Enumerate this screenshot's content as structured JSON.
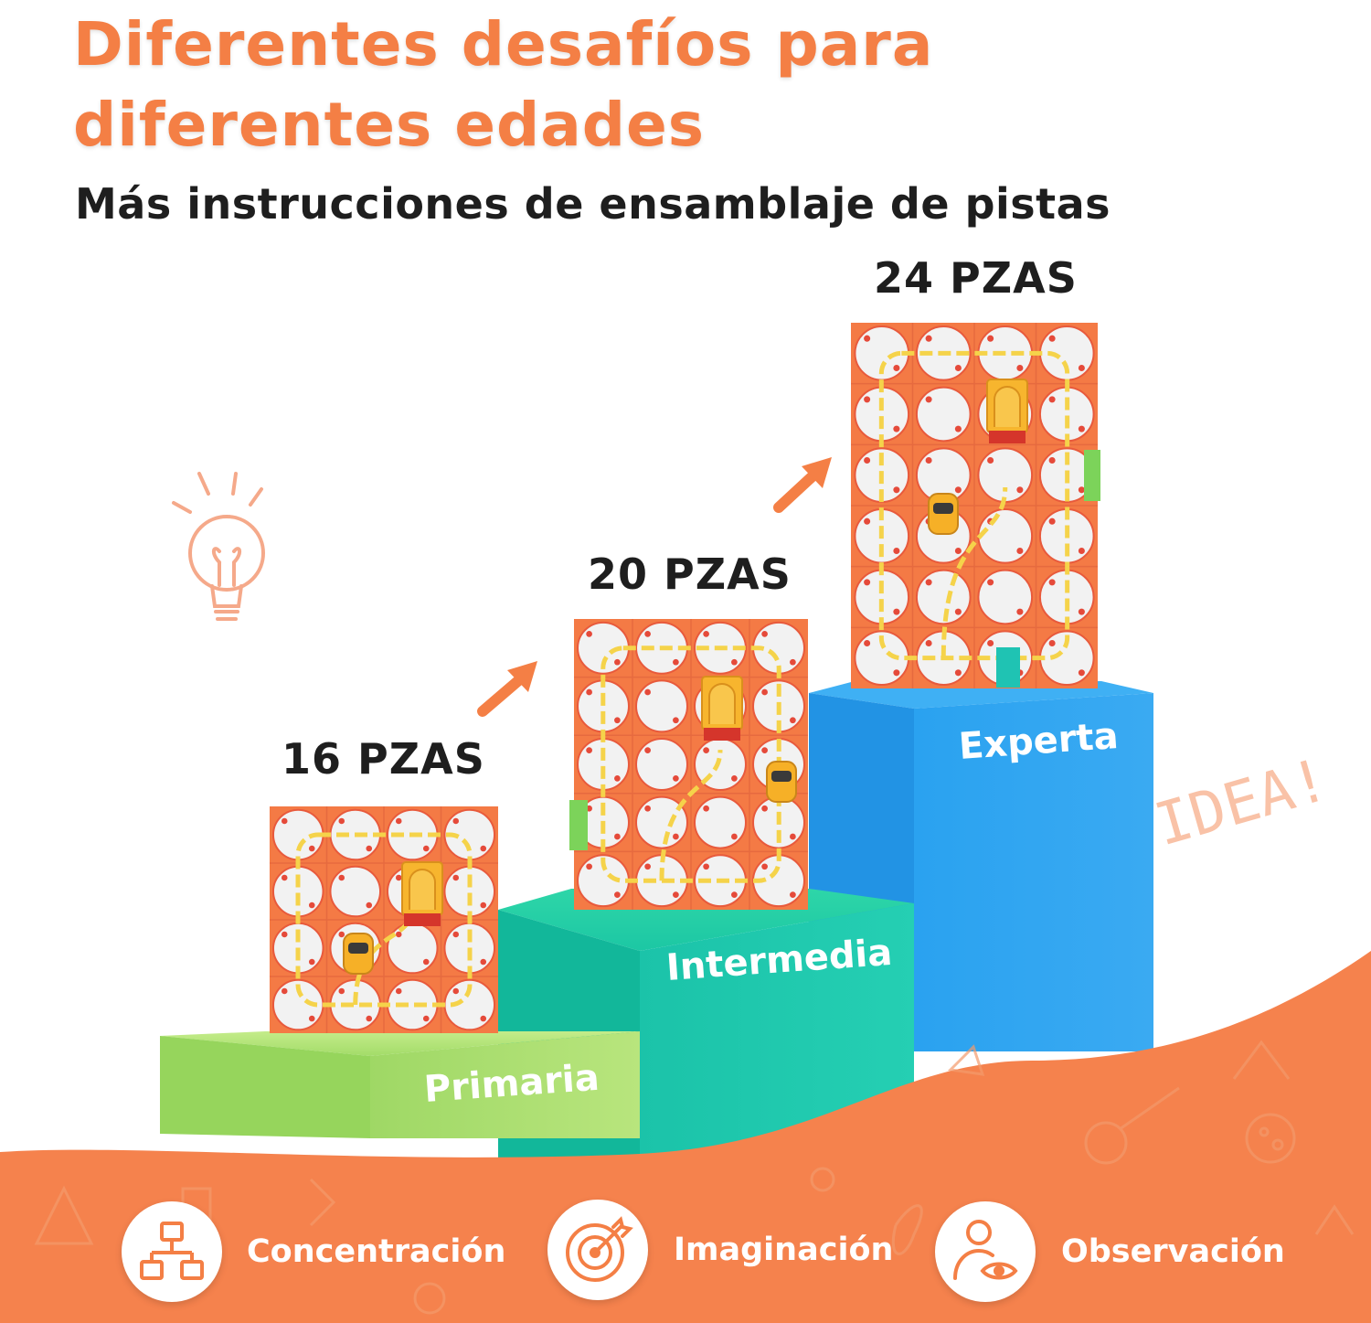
{
  "header": {
    "title_line1": "Diferentes desafíos para",
    "title_line2": "diferentes edades",
    "subtitle": "Más instrucciones de ensamblaje de pistas"
  },
  "levels": [
    {
      "pieces": "16 PZAS",
      "name": "Primaria",
      "grid": [
        4,
        4
      ],
      "color": "#a8e06a"
    },
    {
      "pieces": "20 PZAS",
      "name": "Intermedia",
      "grid": [
        4,
        5
      ],
      "color": "#1fcaa8"
    },
    {
      "pieces": "24 PZAS",
      "name": "Experta",
      "grid": [
        4,
        6
      ],
      "color": "#2b9ef0"
    }
  ],
  "decoration": {
    "handwritten": "IDEA!"
  },
  "features": [
    {
      "label": "Concentración",
      "icon": "hierarchy-icon"
    },
    {
      "label": "Imaginación",
      "icon": "target-icon"
    },
    {
      "label": "Observación",
      "icon": "person-eye-icon"
    }
  ],
  "colors": {
    "accent_orange": "#f47f45",
    "text_dark": "#1e1e1e",
    "tile_white": "#f2f2f2",
    "track_yellow": "#f5d34a"
  }
}
